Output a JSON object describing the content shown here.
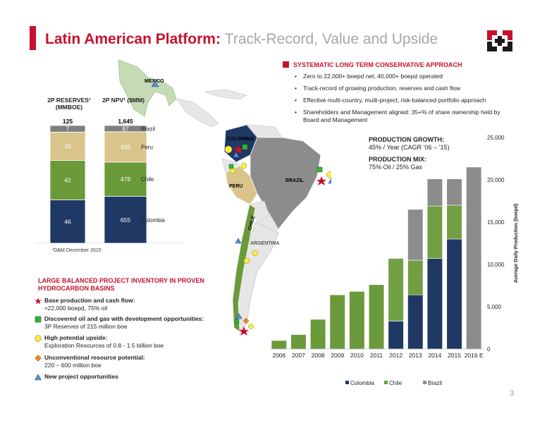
{
  "header": {
    "title_main": "Latin American Platform:",
    "title_sub": "Track-Record, Value and Upside",
    "page_number": "3"
  },
  "colors": {
    "accent": "#c8102e",
    "colombia": "#1f3864",
    "chile": "#6a9a3a",
    "brazil": "#8c8c8c",
    "peru": "#d9c48c",
    "stack_top": "#7f7f7f"
  },
  "map": {
    "labels": {
      "mexico": "MEXICO",
      "colombia": "COLOMBIA",
      "brazil": "BRAZIL",
      "peru": "PERU",
      "chile": "CHILE",
      "argentina": "ARGENTINA"
    }
  },
  "approach": {
    "title": "SYSTEMATIC LONG TERM CONSERVATIVE APPROACH",
    "items": [
      "Zero to 22,000+ boepd net, 40,000+ boepd operated",
      "Track-record of growing production, reserves and cash flow",
      "Effective multi-country, multi-project, risk-balanced portfolio approach",
      "Shareholders and Management aligned: 35+% of share ownership held by Board and Management"
    ]
  },
  "stacks": {
    "reserves_title": "2P RESERVES¹ (MMBOE)",
    "npv_title": "2P NPV¹ ($MM)",
    "reserves_total": "125",
    "npv_total": "1,645",
    "segments": [
      "Colombia",
      "Chile",
      "Peru",
      "Brazil"
    ],
    "reserves_values": [
      46,
      42,
      30,
      7
    ],
    "npv_values": [
      655,
      478,
      425,
      87
    ],
    "footnote": "¹D&M December 2015"
  },
  "inventory": {
    "title": "LARGE BALANCED PROJECT INVENTORY IN PROVEN HYDROCARBON BASINS",
    "items": [
      {
        "symbol": "star",
        "label": "Base production and cash flow:",
        "detail": "≈22,000 boepd, 75% oil"
      },
      {
        "symbol": "square",
        "label": "Discovered oil and gas with development opportunities:",
        "detail": "3P Reserves of 215 million boe"
      },
      {
        "symbol": "circle",
        "label": "High potential upside:",
        "detail": "Exploration Resources of 0.8 - 1.5 billion boe"
      },
      {
        "symbol": "diamond",
        "label": "Unconventional resource potential:",
        "detail": "220 – 600 million boe"
      },
      {
        "symbol": "triangle",
        "label": "New project opportunities",
        "detail": ""
      }
    ]
  },
  "production": {
    "growth_label": "PRODUCTION GROWTH:",
    "growth_value": "45% / Year (CAGR ’06 – ’15)",
    "mix_label": "PRODUCTION MIX:",
    "mix_value": "75% Oil / 25% Gas"
  },
  "chart_data": {
    "type": "bar",
    "stacked": true,
    "categories": [
      "2006",
      "2007",
      "2008",
      "2009",
      "2010",
      "2011",
      "2012",
      "2013",
      "2014",
      "2015",
      "2016 E"
    ],
    "series": [
      {
        "name": "Colombia",
        "values": [
          0,
          0,
          0,
          0,
          0,
          0,
          3300,
          6400,
          10700,
          13000,
          0
        ]
      },
      {
        "name": "Chile",
        "values": [
          1000,
          1700,
          3500,
          6400,
          6800,
          7600,
          7400,
          4100,
          6200,
          4000,
          0
        ]
      },
      {
        "name": "Brazil",
        "values": [
          0,
          0,
          0,
          0,
          0,
          0,
          0,
          6000,
          3200,
          3100,
          21500
        ]
      }
    ],
    "ylabel": "Average Daily Production (boepd)",
    "ylim": [
      0,
      25000
    ],
    "yticks": [
      "0",
      "5,000",
      "10,000",
      "15,000",
      "20,000",
      "25,000"
    ],
    "legend_position": "bottom"
  }
}
